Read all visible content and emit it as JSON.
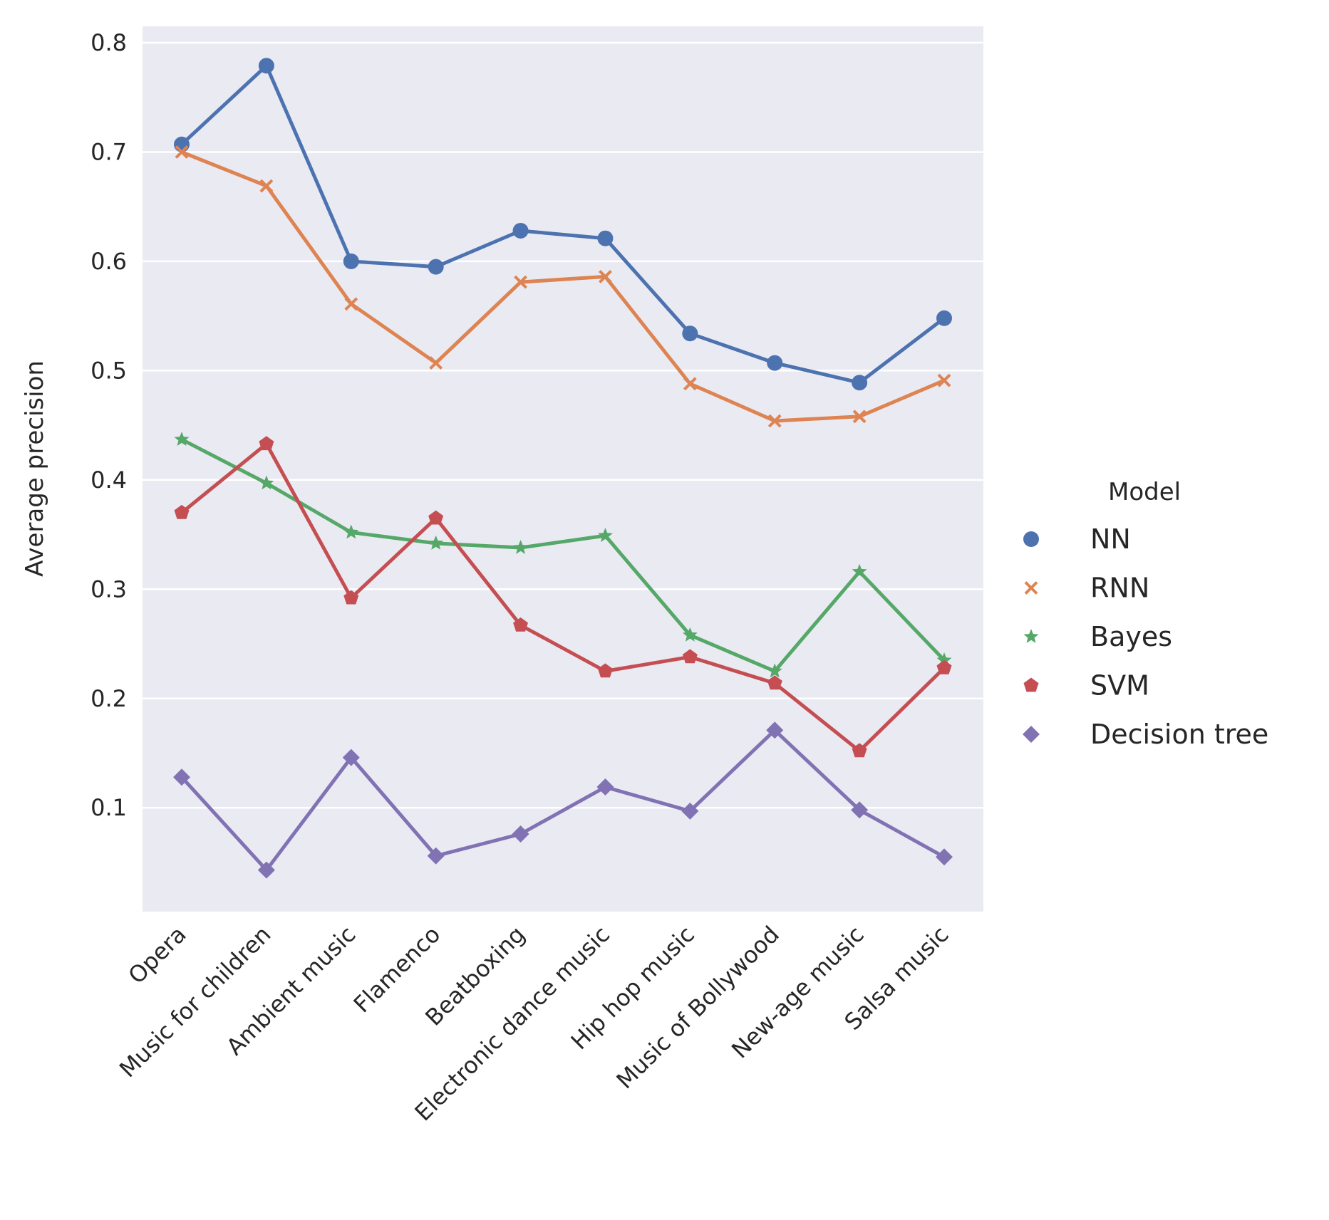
{
  "chart_data": {
    "type": "line",
    "title": "",
    "xlabel": "",
    "ylabel": "Average precision",
    "categories": [
      "Opera",
      "Music for children",
      "Ambient music",
      "Flamenco",
      "Beatboxing",
      "Electronic dance music",
      "Hip hop music",
      "Music of Bollywood",
      "New-age music",
      "Salsa music"
    ],
    "yticks": [
      "0.1",
      "0.2",
      "0.3",
      "0.4",
      "0.5",
      "0.6",
      "0.7",
      "0.8"
    ],
    "ylim": [
      0.005,
      0.815
    ],
    "grid": true,
    "legend": {
      "title": "Model",
      "placement": "right"
    },
    "series": [
      {
        "name": "NN",
        "marker": "circle",
        "color": "#4c72b0",
        "values": [
          0.707,
          0.779,
          0.6,
          0.595,
          0.628,
          0.621,
          0.534,
          0.507,
          0.489,
          0.548
        ]
      },
      {
        "name": "RNN",
        "marker": "x",
        "color": "#dd8452",
        "values": [
          0.7,
          0.669,
          0.561,
          0.507,
          0.581,
          0.586,
          0.488,
          0.454,
          0.458,
          0.491
        ]
      },
      {
        "name": "Bayes",
        "marker": "star",
        "color": "#55a868",
        "values": [
          0.437,
          0.397,
          0.352,
          0.342,
          0.338,
          0.349,
          0.258,
          0.225,
          0.316,
          0.235
        ]
      },
      {
        "name": "SVM",
        "marker": "pentagon",
        "color": "#c44e52",
        "values": [
          0.37,
          0.433,
          0.292,
          0.365,
          0.267,
          0.225,
          0.238,
          0.214,
          0.152,
          0.228
        ]
      },
      {
        "name": "Decision tree",
        "marker": "diamond",
        "color": "#8172b3",
        "values": [
          0.128,
          0.043,
          0.146,
          0.056,
          0.076,
          0.119,
          0.097,
          0.171,
          0.098,
          0.055
        ]
      }
    ]
  }
}
